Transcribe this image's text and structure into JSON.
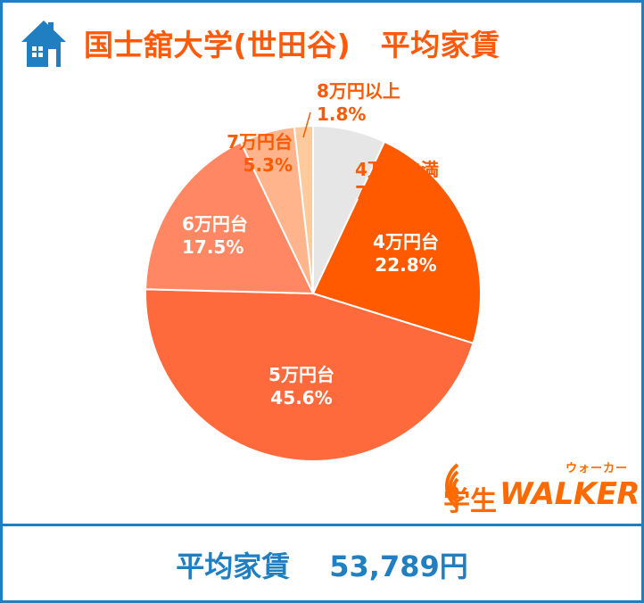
{
  "header": {
    "title": "国士舘大学(世田谷)　平均家賃",
    "icon": "house-icon"
  },
  "chart_data": {
    "type": "pie",
    "start": "top, clockwise",
    "slices": [
      {
        "label": "4万円未満",
        "value": 7.0,
        "value_text": "7.0%",
        "color": "#e6e6e6"
      },
      {
        "label": "4万円台",
        "value": 22.8,
        "value_text": "22.8%",
        "color": "#ff5a00"
      },
      {
        "label": "5万円台",
        "value": 45.6,
        "value_text": "45.6%",
        "color": "#ff6a3d"
      },
      {
        "label": "6万円台",
        "value": 17.5,
        "value_text": "17.5%",
        "color": "#ff8763"
      },
      {
        "label": "7万円台",
        "value": 5.3,
        "value_text": "5.3%",
        "color": "#ffb48c"
      },
      {
        "label": "8万円以上",
        "value": 1.8,
        "value_text": "1.8%",
        "color": "#ffca9e"
      }
    ]
  },
  "logo": {
    "kana": "ウォーカー",
    "gakusei": "学生",
    "walker": "WALKER",
    "color": "#ff6a00"
  },
  "footer": {
    "label": "平均家賃",
    "value": "53,789円"
  },
  "colors": {
    "border": "#1f7fc1",
    "title": "#ff5a0a"
  }
}
